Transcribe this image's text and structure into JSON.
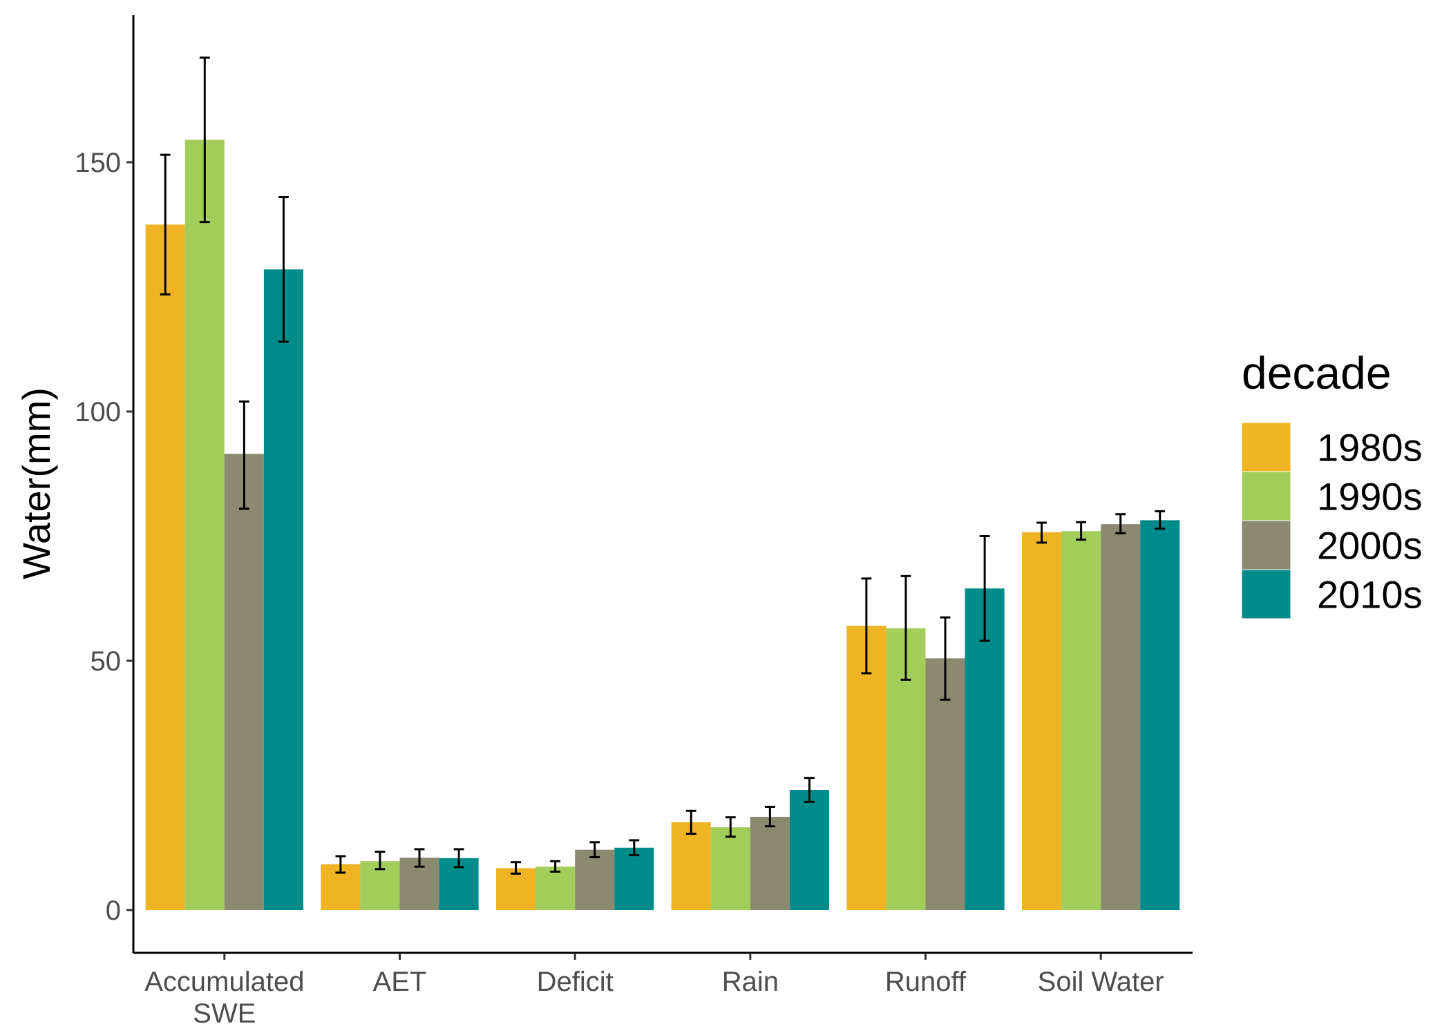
{
  "chart_data": {
    "type": "bar",
    "title": "",
    "xlabel": "",
    "ylabel": "Water(mm)",
    "ylim": [
      -8,
      180
    ],
    "yticks": [
      0,
      50,
      100,
      150
    ],
    "grid": false,
    "legend": {
      "title": "decade",
      "placement": "right"
    },
    "categories": [
      [
        "Accumulated",
        "SWE"
      ],
      [
        "AET"
      ],
      [
        "Deficit"
      ],
      [
        "Rain"
      ],
      [
        "Runoff"
      ],
      [
        "Soil Water"
      ]
    ],
    "series": [
      {
        "name": "1980s",
        "color": "#EFB324",
        "values": [
          137.5,
          9.2,
          8.4,
          17.6,
          57.0,
          75.8
        ],
        "error_low": [
          123.5,
          7.5,
          7.3,
          15.3,
          47.5,
          73.7
        ],
        "error_high": [
          151.5,
          10.8,
          9.6,
          19.9,
          66.5,
          77.7
        ]
      },
      {
        "name": "1990s",
        "color": "#A2CD5A",
        "values": [
          154.5,
          9.8,
          8.7,
          16.6,
          56.5,
          76.0
        ],
        "error_low": [
          138.0,
          8.2,
          7.7,
          14.7,
          46.2,
          74.3
        ],
        "error_high": [
          171.0,
          11.7,
          9.8,
          18.6,
          67.0,
          77.8
        ]
      },
      {
        "name": "2000s",
        "color": "#8B8970",
        "values": [
          91.5,
          10.5,
          12.1,
          18.7,
          50.5,
          77.4
        ],
        "error_low": [
          80.5,
          8.7,
          10.6,
          16.8,
          42.2,
          75.6
        ],
        "error_high": [
          102.0,
          12.2,
          13.6,
          20.7,
          58.7,
          79.4
        ]
      },
      {
        "name": "2010s",
        "color": "#008B8B",
        "values": [
          128.5,
          10.4,
          12.5,
          24.1,
          64.5,
          78.2
        ],
        "error_low": [
          114.0,
          8.6,
          11.0,
          21.7,
          54.0,
          76.5
        ],
        "error_high": [
          143.0,
          12.2,
          14.0,
          26.5,
          75.0,
          80.0
        ]
      }
    ]
  }
}
